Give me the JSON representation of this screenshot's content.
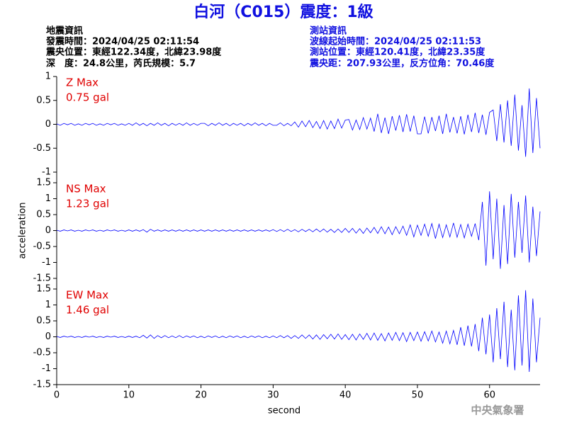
{
  "header": {
    "title": "白河（C015）震度：1級",
    "left": [
      "地震資訊",
      "發震時間：2024/04/25 02:11:54",
      "震央位置：東經122.34度，北緯23.98度",
      "深　度：24.8公里，芮氏規模：5.7"
    ],
    "right": [
      "測站資訊",
      "波線起始時間：2024/04/25 02:11:53",
      "測站位置：東經120.41度，北緯23.35度",
      "震央距：207.93公里，反方位角：70.46度"
    ]
  },
  "footer": {
    "agency": "中央氣象署"
  },
  "chart_data": [
    {
      "type": "line",
      "label": "Z Max",
      "annotation": "0.75 gal",
      "xlim": [
        0,
        67
      ],
      "ylim": [
        -1,
        1
      ],
      "yticks": [
        -1,
        -0.5,
        0,
        0.5,
        1
      ],
      "x": [
        0,
        0.5,
        1,
        1.5,
        2,
        2.5,
        3,
        3.5,
        4,
        4.5,
        5,
        5.5,
        6,
        6.5,
        7,
        7.5,
        8,
        8.5,
        9,
        9.5,
        10,
        10.5,
        11,
        11.5,
        12,
        12.5,
        13,
        13.5,
        14,
        14.5,
        15,
        15.5,
        16,
        16.5,
        17,
        17.5,
        18,
        18.5,
        19,
        19.5,
        20,
        20.5,
        21,
        21.5,
        22,
        22.5,
        23,
        23.5,
        24,
        24.5,
        25,
        25.5,
        26,
        26.5,
        27,
        27.5,
        28,
        28.5,
        29,
        29.5,
        30,
        30.5,
        31,
        31.5,
        32,
        32.5,
        33,
        33.5,
        34,
        34.5,
        35,
        35.5,
        36,
        36.5,
        37,
        37.5,
        38,
        38.5,
        39,
        39.5,
        40,
        40.5,
        41,
        41.5,
        42,
        42.5,
        43,
        43.5,
        44,
        44.5,
        45,
        45.5,
        46,
        46.5,
        47,
        47.5,
        48,
        48.5,
        49,
        49.5,
        50,
        50.5,
        51,
        51.5,
        52,
        52.5,
        53,
        53.5,
        54,
        54.5,
        55,
        55.5,
        56,
        56.5,
        57,
        57.5,
        58,
        58.5,
        59,
        59.5,
        60,
        60.5,
        61,
        61.5,
        62,
        62.5,
        63,
        63.5,
        64,
        64.5,
        65,
        65.5,
        66,
        66.5,
        67
      ],
      "series": [
        {
          "color": "#0000ff",
          "values": [
            0.01,
            -0.02,
            0.02,
            -0.01,
            0.02,
            -0.02,
            0.01,
            -0.02,
            0.02,
            -0.01,
            0.02,
            -0.02,
            0.01,
            -0.02,
            0.02,
            -0.01,
            0.02,
            -0.02,
            0.01,
            -0.02,
            0.02,
            -0.02,
            0.03,
            -0.02,
            0.02,
            -0.03,
            0.02,
            -0.02,
            0.03,
            -0.02,
            0.02,
            -0.03,
            0.02,
            -0.02,
            0.02,
            -0.02,
            0.03,
            -0.02,
            0.02,
            -0.02,
            0.02,
            0.02,
            -0.03,
            0.02,
            -0.02,
            0.03,
            -0.02,
            0.02,
            -0.03,
            0.02,
            -0.02,
            0.02,
            -0.03,
            0.02,
            -0.02,
            0.03,
            -0.02,
            0.02,
            -0.03,
            0.02,
            -0.02,
            -0.02,
            0.03,
            -0.03,
            0.02,
            -0.03,
            0.05,
            -0.06,
            0.07,
            -0.05,
            0.08,
            -0.07,
            0.06,
            -0.09,
            0.08,
            -0.1,
            0.07,
            -0.09,
            0.11,
            -0.08,
            0.09,
            0.1,
            -0.12,
            0.09,
            -0.11,
            0.14,
            -0.1,
            0.13,
            -0.15,
            0.22,
            -0.18,
            0.14,
            -0.2,
            0.17,
            -0.13,
            0.19,
            -0.16,
            0.21,
            -0.15,
            0.18,
            -0.2,
            -0.2,
            0.16,
            -0.19,
            0.15,
            -0.14,
            0.18,
            -0.2,
            0.22,
            -0.17,
            0.15,
            -0.19,
            0.17,
            -0.21,
            0.2,
            -0.16,
            0.24,
            -0.18,
            0.2,
            -0.22,
            0.25,
            0.3,
            -0.35,
            0.42,
            -0.38,
            0.5,
            -0.45,
            0.62,
            -0.55,
            0.4,
            -0.68,
            0.75,
            -0.6,
            0.55,
            -0.5
          ]
        }
      ]
    },
    {
      "type": "line",
      "label": "NS Max",
      "annotation": "1.23 gal",
      "ylabel": "acceleration",
      "xlim": [
        0,
        67
      ],
      "ylim": [
        -1.5,
        1.5
      ],
      "yticks": [
        -1.5,
        -1,
        -0.5,
        0,
        0.5,
        1,
        1.5
      ],
      "x": [
        0,
        0.5,
        1,
        1.5,
        2,
        2.5,
        3,
        3.5,
        4,
        4.5,
        5,
        5.5,
        6,
        6.5,
        7,
        7.5,
        8,
        8.5,
        9,
        9.5,
        10,
        10.5,
        11,
        11.5,
        12,
        12.5,
        13,
        13.5,
        14,
        14.5,
        15,
        15.5,
        16,
        16.5,
        17,
        17.5,
        18,
        18.5,
        19,
        19.5,
        20,
        20.5,
        21,
        21.5,
        22,
        22.5,
        23,
        23.5,
        24,
        24.5,
        25,
        25.5,
        26,
        26.5,
        27,
        27.5,
        28,
        28.5,
        29,
        29.5,
        30,
        30.5,
        31,
        31.5,
        32,
        32.5,
        33,
        33.5,
        34,
        34.5,
        35,
        35.5,
        36,
        36.5,
        37,
        37.5,
        38,
        38.5,
        39,
        39.5,
        40,
        40.5,
        41,
        41.5,
        42,
        42.5,
        43,
        43.5,
        44,
        44.5,
        45,
        45.5,
        46,
        46.5,
        47,
        47.5,
        48,
        48.5,
        49,
        49.5,
        50,
        50.5,
        51,
        51.5,
        52,
        52.5,
        53,
        53.5,
        54,
        54.5,
        55,
        55.5,
        56,
        56.5,
        57,
        57.5,
        58,
        58.5,
        59,
        59.5,
        60,
        60.5,
        61,
        61.5,
        62,
        62.5,
        63,
        63.5,
        64,
        64.5,
        65,
        65.5,
        66,
        66.5,
        67
      ],
      "series": [
        {
          "color": "#0000ff",
          "values": [
            0.01,
            -0.02,
            0.02,
            -0.01,
            0.02,
            -0.02,
            0.01,
            -0.02,
            0.02,
            -0.01,
            0.02,
            -0.02,
            0.01,
            -0.02,
            0.02,
            -0.01,
            0.02,
            -0.02,
            0.01,
            -0.02,
            0.02,
            -0.02,
            0.02,
            -0.02,
            0.03,
            -0.05,
            0.04,
            -0.02,
            0.02,
            -0.02,
            0.02,
            -0.02,
            0.02,
            -0.02,
            0.02,
            -0.02,
            0.02,
            -0.02,
            0.02,
            -0.02,
            0.02,
            -0.02,
            0.02,
            -0.02,
            0.02,
            -0.02,
            0.02,
            -0.02,
            0.02,
            -0.02,
            0.02,
            -0.02,
            0.02,
            -0.02,
            0.02,
            -0.02,
            0.02,
            -0.02,
            0.02,
            -0.02,
            0.03,
            -0.03,
            0.03,
            -0.03,
            0.04,
            -0.03,
            0.03,
            -0.04,
            0.04,
            -0.03,
            0.04,
            -0.04,
            0.05,
            -0.04,
            0.05,
            -0.05,
            0.04,
            -0.06,
            0.05,
            -0.06,
            0.07,
            -0.06,
            0.07,
            -0.08,
            0.06,
            -0.09,
            0.08,
            -0.07,
            0.1,
            -0.09,
            0.12,
            -0.1,
            0.11,
            -0.13,
            0.12,
            -0.1,
            0.14,
            -0.15,
            0.18,
            -0.2,
            0.17,
            -0.15,
            0.2,
            -0.18,
            0.22,
            -0.25,
            0.2,
            -0.22,
            0.18,
            -0.2,
            0.24,
            -0.21,
            0.19,
            -0.23,
            0.2,
            -0.18,
            0.22,
            -0.3,
            0.9,
            -1.1,
            1.23,
            -0.9,
            1.0,
            -1.2,
            0.8,
            -1.05,
            1.15,
            -0.85,
            0.9,
            -0.7,
            1.1,
            -1.0,
            0.75,
            -0.8,
            0.6
          ]
        }
      ]
    },
    {
      "type": "line",
      "label": "EW Max",
      "annotation": "1.46 gal",
      "xlabel": "second",
      "xlim": [
        0,
        67
      ],
      "xticks": [
        0,
        10,
        20,
        30,
        40,
        50,
        60
      ],
      "ylim": [
        -1.5,
        1.5
      ],
      "yticks": [
        -1.5,
        -1,
        -0.5,
        0,
        0.5,
        1,
        1.5
      ],
      "x": [
        0,
        0.5,
        1,
        1.5,
        2,
        2.5,
        3,
        3.5,
        4,
        4.5,
        5,
        5.5,
        6,
        6.5,
        7,
        7.5,
        8,
        8.5,
        9,
        9.5,
        10,
        10.5,
        11,
        11.5,
        12,
        12.5,
        13,
        13.5,
        14,
        14.5,
        15,
        15.5,
        16,
        16.5,
        17,
        17.5,
        18,
        18.5,
        19,
        19.5,
        20,
        20.5,
        21,
        21.5,
        22,
        22.5,
        23,
        23.5,
        24,
        24.5,
        25,
        25.5,
        26,
        26.5,
        27,
        27.5,
        28,
        28.5,
        29,
        29.5,
        30,
        30.5,
        31,
        31.5,
        32,
        32.5,
        33,
        33.5,
        34,
        34.5,
        35,
        35.5,
        36,
        36.5,
        37,
        37.5,
        38,
        38.5,
        39,
        39.5,
        40,
        40.5,
        41,
        41.5,
        42,
        42.5,
        43,
        43.5,
        44,
        44.5,
        45,
        45.5,
        46,
        46.5,
        47,
        47.5,
        48,
        48.5,
        49,
        49.5,
        50,
        50.5,
        51,
        51.5,
        52,
        52.5,
        53,
        53.5,
        54,
        54.5,
        55,
        55.5,
        56,
        56.5,
        57,
        57.5,
        58,
        58.5,
        59,
        59.5,
        60,
        60.5,
        61,
        61.5,
        62,
        62.5,
        63,
        63.5,
        64,
        64.5,
        65,
        65.5,
        66,
        66.5,
        67
      ],
      "series": [
        {
          "color": "#0000ff",
          "values": [
            0.01,
            -0.02,
            0.02,
            -0.01,
            0.02,
            -0.02,
            0.01,
            -0.02,
            0.02,
            -0.01,
            0.02,
            -0.02,
            0.01,
            -0.02,
            0.02,
            -0.01,
            0.02,
            -0.02,
            0.01,
            -0.02,
            0.02,
            -0.02,
            0.02,
            -0.03,
            0.05,
            -0.04,
            0.06,
            -0.05,
            0.04,
            -0.03,
            0.04,
            -0.03,
            0.03,
            -0.03,
            0.04,
            -0.03,
            0.03,
            -0.02,
            0.03,
            -0.03,
            0.02,
            -0.03,
            0.03,
            -0.02,
            0.03,
            -0.03,
            0.02,
            -0.03,
            0.03,
            -0.02,
            0.03,
            -0.03,
            0.02,
            -0.03,
            0.03,
            -0.02,
            0.03,
            -0.03,
            0.02,
            -0.03,
            0.03,
            -0.03,
            0.04,
            -0.03,
            0.04,
            -0.05,
            0.04,
            -0.05,
            0.06,
            -0.05,
            0.06,
            -0.07,
            0.06,
            -0.08,
            0.07,
            -0.06,
            0.08,
            -0.07,
            0.09,
            -0.08,
            0.07,
            -0.09,
            0.08,
            -0.1,
            0.09,
            -0.08,
            0.11,
            -0.1,
            0.12,
            -0.11,
            0.1,
            -0.13,
            0.12,
            -0.11,
            0.14,
            -0.12,
            0.13,
            -0.15,
            0.14,
            -0.12,
            0.15,
            -0.14,
            0.16,
            -0.13,
            0.18,
            -0.16,
            0.15,
            -0.2,
            0.18,
            -0.22,
            0.2,
            -0.25,
            0.3,
            -0.28,
            0.35,
            -0.3,
            0.4,
            -0.45,
            0.6,
            -0.55,
            0.7,
            -0.8,
            0.9,
            -0.7,
            1.1,
            -0.95,
            0.85,
            -1.05,
            1.3,
            -0.9,
            1.46,
            -1.1,
            1.2,
            -0.8,
            0.6
          ]
        }
      ]
    }
  ]
}
